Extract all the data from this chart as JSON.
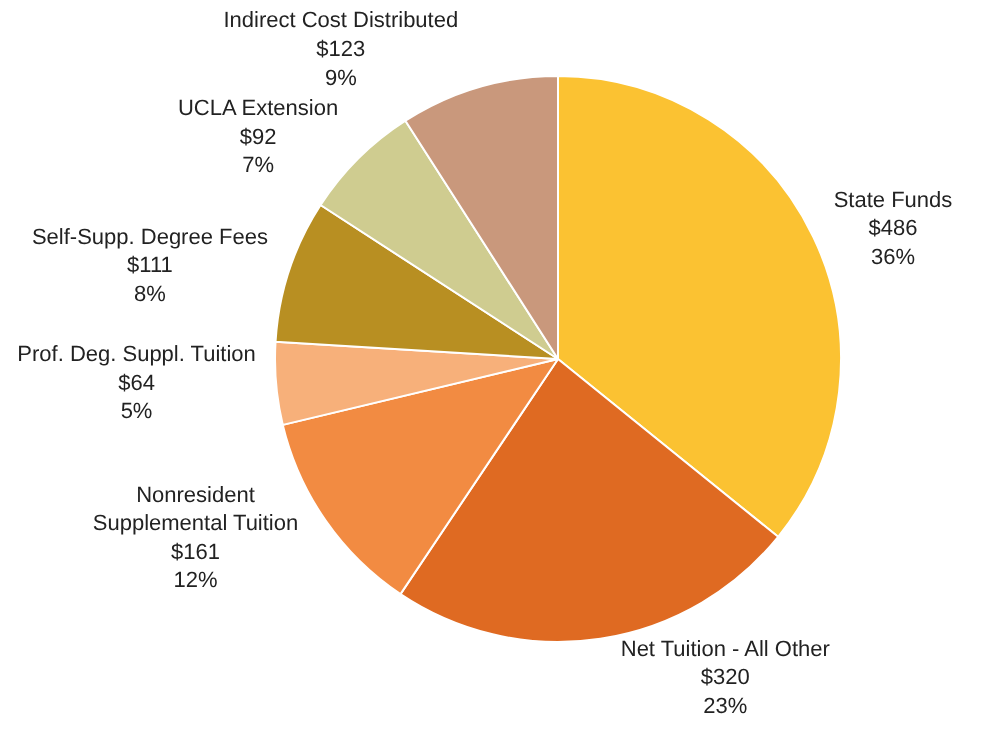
{
  "chart_data": {
    "type": "pie",
    "categories": [
      "State Funds",
      "Net Tuition - All Other",
      "Nonresident Supplemental Tuition",
      "Prof. Deg. Suppl. Tuition",
      "Self-Supp. Degree Fees",
      "UCLA Extension",
      "Indirect Cost Distributed"
    ],
    "values": [
      486,
      320,
      161,
      64,
      111,
      92,
      123
    ],
    "value_labels": [
      "$486\n36%",
      "$320\n23%",
      "$161\n12%",
      "$64\n5%",
      "$111\n8%",
      "$92\n7%",
      "$123\n9%"
    ],
    "colors": [
      "#fbc232",
      "#df6a22",
      "#f28b42",
      "#f7b07a",
      "#b88f22",
      "#cfcc90",
      "#c9987c"
    ],
    "legend": false
  }
}
